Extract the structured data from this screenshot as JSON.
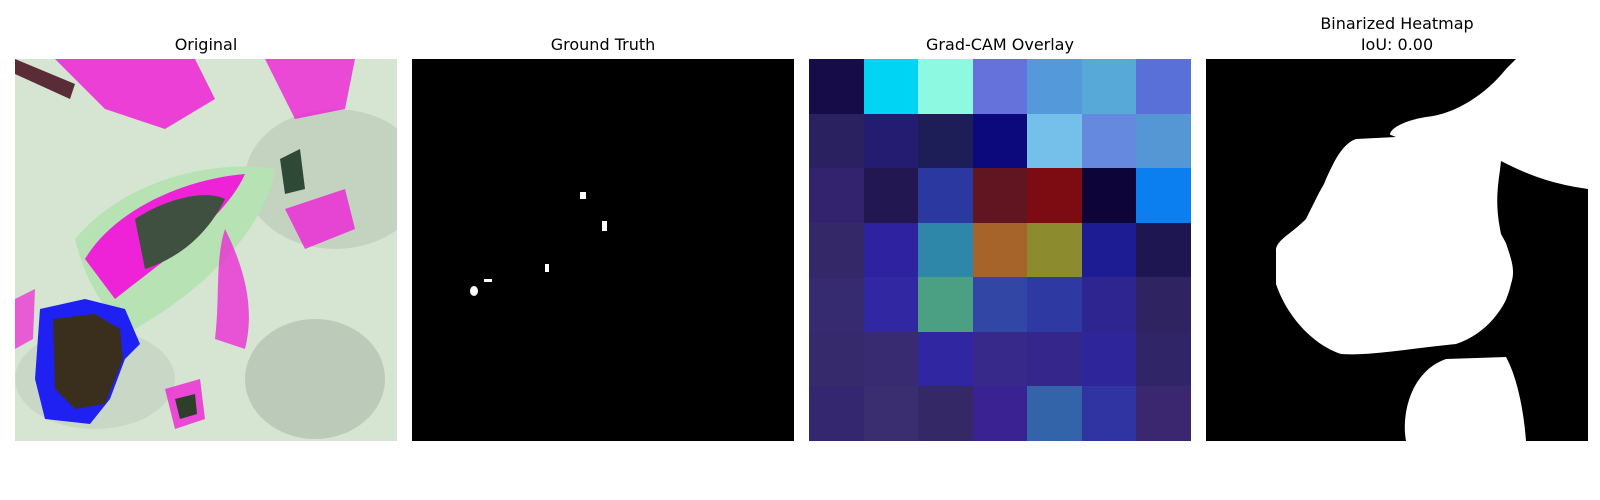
{
  "panels": [
    {
      "title": "Original"
    },
    {
      "title": "Ground Truth"
    },
    {
      "title": "Grad-CAM Overlay"
    },
    {
      "title": "Binarized Heatmap",
      "subtitle": "IoU: 0.00",
      "iou": 0.0
    }
  ],
  "gradcam_grid": [
    [
      "#160d48",
      "#00d4f4",
      "#8cf9e0",
      "#6572dc",
      "#5499d9",
      "#57a9d8",
      "#5a70d9"
    ],
    [
      "#2a2260",
      "#231c70",
      "#1d1e57",
      "#0c097c",
      "#74c0ea",
      "#6589df",
      "#5597d4"
    ],
    [
      "#33236f",
      "#231752",
      "#2a38a0",
      "#611520",
      "#7c0c12",
      "#0d0439",
      "#0c7ff0"
    ],
    [
      "#342869",
      "#2e22a0",
      "#2e87a8",
      "#a7642a",
      "#8c8c2e",
      "#1d1c93",
      "#1e1651"
    ],
    [
      "#362a70",
      "#3127a3",
      "#4ba084",
      "#3246a6",
      "#2e3aa1",
      "#2f2590",
      "#2f2362"
    ],
    [
      "#362a6d",
      "#392b72",
      "#3126a2",
      "#36298a",
      "#34268a",
      "#2f259b",
      "#2f2567"
    ],
    [
      "#35276f",
      "#3a2e71",
      "#352867",
      "#3b2292",
      "#3363a8",
      "#3033a2",
      "#3a2770"
    ]
  ]
}
